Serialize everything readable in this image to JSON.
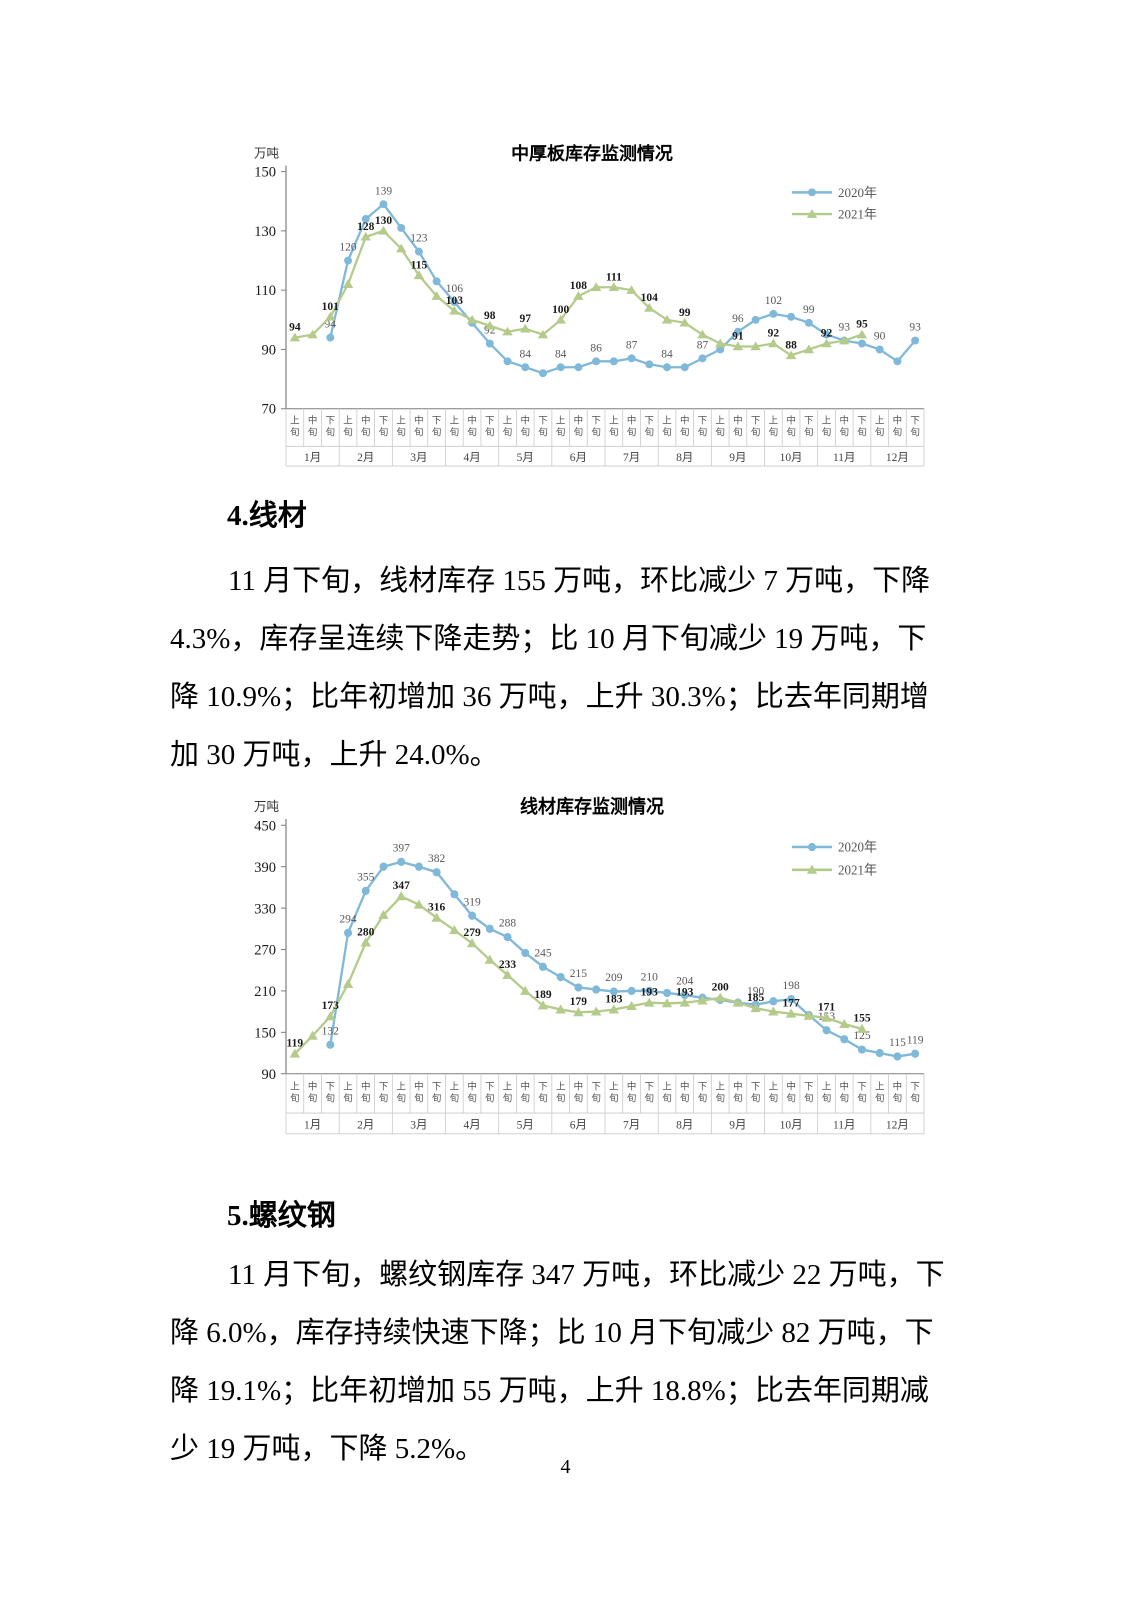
{
  "page": {
    "number": "4"
  },
  "sections": [
    {
      "heading": "4.线材",
      "lines": [
        "11 月下旬，线材库存 155 万吨，环比减少 7 万吨，下降",
        "4.3%，库存呈连续下降走势；比 10 月下旬减少 19 万吨，下",
        "降 10.9%；比年初增加 36 万吨，上升 30.3%；比去年同期增",
        "加 30 万吨，上升 24.0%。"
      ]
    },
    {
      "heading": "5.螺纹钢",
      "lines": [
        "11 月下旬，螺纹钢库存 347 万吨，环比减少 22 万吨，下",
        "降 6.0%，库存持续快速下降；比 10 月下旬减少 82 万吨，下",
        "降 19.1%；比年初增加 55 万吨，上升 18.8%；比去年同期减",
        "少 19 万吨，下降 5.2%。"
      ]
    }
  ],
  "chart_data": [
    {
      "type": "line",
      "title": "中厚板库存监测情况",
      "unit_label": "万吨",
      "ylim": [
        70,
        150
      ],
      "y_ticks": [
        150,
        130,
        110,
        90,
        70
      ],
      "grid": "off",
      "legend_position": "top-right",
      "months": [
        "1月",
        "2月",
        "3月",
        "4月",
        "5月",
        "6月",
        "7月",
        "8月",
        "9月",
        "10月",
        "11月",
        "12月"
      ],
      "period_labels": [
        "上旬",
        "中旬",
        "下旬"
      ],
      "series": [
        {
          "name": "2020年",
          "color": "#7FB8D8",
          "marker": "circle",
          "label_style": "regular",
          "values": [
            null,
            null,
            94,
            120,
            134,
            139,
            131,
            123,
            113,
            106,
            99,
            92,
            86,
            84,
            82,
            84,
            84,
            86,
            86,
            87,
            85,
            84,
            84,
            87,
            90,
            96,
            100,
            102,
            101,
            99,
            95,
            93,
            92,
            90,
            86,
            93
          ],
          "labels": [
            null,
            null,
            94,
            120,
            null,
            139,
            null,
            123,
            null,
            106,
            null,
            92,
            null,
            84,
            null,
            84,
            null,
            86,
            null,
            87,
            null,
            84,
            null,
            87,
            null,
            96,
            null,
            102,
            null,
            99,
            null,
            93,
            null,
            90,
            null,
            93
          ]
        },
        {
          "name": "2021年",
          "color": "#B5CB8C",
          "marker": "triangle",
          "label_style": "bold",
          "values": [
            94,
            95,
            101,
            112,
            128,
            130,
            124,
            115,
            108,
            103,
            100,
            98,
            96,
            97,
            95,
            100,
            108,
            111,
            111,
            110,
            104,
            100,
            99,
            95,
            92,
            91,
            91,
            92,
            88,
            90,
            92,
            93,
            95,
            null,
            null,
            null
          ],
          "labels": [
            94,
            null,
            101,
            null,
            128,
            130,
            null,
            115,
            null,
            103,
            null,
            98,
            null,
            97,
            null,
            100,
            108,
            null,
            111,
            null,
            104,
            null,
            99,
            null,
            null,
            91,
            null,
            92,
            88,
            null,
            92,
            null,
            95,
            null,
            null,
            null
          ]
        }
      ]
    },
    {
      "type": "line",
      "title": "线材库存监测情况",
      "unit_label": "万吨",
      "ylim": [
        90,
        450
      ],
      "y_ticks": [
        450,
        390,
        330,
        270,
        210,
        150,
        90
      ],
      "grid": "off",
      "legend_position": "top-right",
      "months": [
        "1月",
        "2月",
        "3月",
        "4月",
        "5月",
        "6月",
        "7月",
        "8月",
        "9月",
        "10月",
        "11月",
        "12月"
      ],
      "period_labels": [
        "上旬",
        "中旬",
        "下旬"
      ],
      "series": [
        {
          "name": "2020年",
          "color": "#7FB8D8",
          "marker": "circle",
          "label_style": "regular",
          "values": [
            null,
            null,
            132,
            294,
            355,
            390,
            397,
            390,
            382,
            350,
            319,
            300,
            288,
            265,
            245,
            230,
            215,
            212,
            209,
            210,
            210,
            207,
            204,
            200,
            197,
            193,
            190,
            195,
            198,
            175,
            153,
            140,
            125,
            120,
            115,
            119
          ],
          "labels": [
            null,
            null,
            132,
            294,
            355,
            null,
            397,
            null,
            382,
            null,
            319,
            null,
            288,
            null,
            245,
            null,
            215,
            null,
            209,
            null,
            210,
            null,
            204,
            null,
            null,
            null,
            190,
            null,
            198,
            null,
            153,
            null,
            125,
            null,
            115,
            119
          ]
        },
        {
          "name": "2021年",
          "color": "#B5CB8C",
          "marker": "triangle",
          "label_style": "bold",
          "values": [
            119,
            145,
            173,
            220,
            280,
            320,
            347,
            335,
            316,
            298,
            279,
            255,
            233,
            210,
            189,
            183,
            179,
            180,
            183,
            188,
            193,
            192,
            193,
            196,
            200,
            193,
            185,
            180,
            177,
            174,
            171,
            162,
            155,
            null,
            null,
            null
          ],
          "labels": [
            119,
            null,
            173,
            null,
            280,
            null,
            347,
            null,
            316,
            null,
            279,
            null,
            233,
            null,
            189,
            null,
            179,
            null,
            183,
            null,
            193,
            null,
            193,
            null,
            200,
            null,
            185,
            null,
            177,
            null,
            171,
            null,
            155,
            null,
            null,
            null
          ]
        }
      ]
    }
  ]
}
